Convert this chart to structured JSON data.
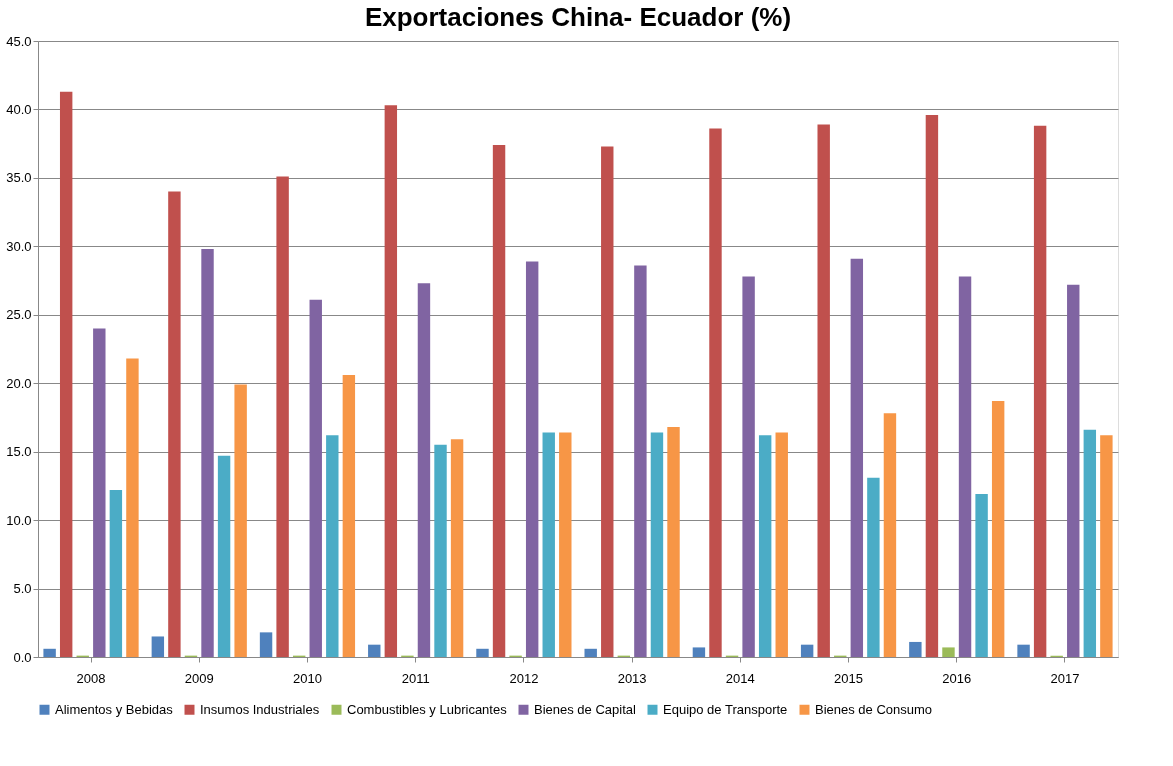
{
  "chart_data": {
    "type": "bar",
    "title": "Exportaciones China- Ecuador (%)",
    "categories": [
      "2008",
      "2009",
      "2010",
      "2011",
      "2012",
      "2013",
      "2014",
      "2015",
      "2016",
      "2017"
    ],
    "series": [
      {
        "name": "Alimentos y Bebidas",
        "color": "#4f81bd",
        "values": [
          0.6,
          1.5,
          1.8,
          0.9,
          0.6,
          0.6,
          0.7,
          0.9,
          1.1,
          0.9
        ]
      },
      {
        "name": "Insumos Industriales",
        "color": "#c0504d",
        "values": [
          41.3,
          34.0,
          35.1,
          40.3,
          37.4,
          37.3,
          38.6,
          38.9,
          39.6,
          38.8
        ]
      },
      {
        "name": "Combustibles y Lubricantes",
        "color": "#9bbb59",
        "values": [
          0.1,
          0.1,
          0.1,
          0.1,
          0.1,
          0.1,
          0.1,
          0.1,
          0.7,
          0.1
        ]
      },
      {
        "name": "Bienes de Capital",
        "color": "#8064a2",
        "values": [
          24.0,
          29.8,
          26.1,
          27.3,
          28.9,
          28.6,
          27.8,
          29.1,
          27.8,
          27.2
        ]
      },
      {
        "name": "Equipo de Transporte",
        "color": "#4bacc6",
        "values": [
          12.2,
          14.7,
          16.2,
          15.5,
          16.4,
          16.4,
          16.2,
          13.1,
          11.9,
          16.6
        ]
      },
      {
        "name": "Bienes de Consumo",
        "color": "#f79646",
        "values": [
          21.8,
          19.9,
          20.6,
          15.9,
          16.4,
          16.8,
          16.4,
          17.8,
          18.7,
          16.2
        ]
      }
    ],
    "ylim": [
      0,
      45
    ],
    "yticks": [
      {
        "value": 0,
        "label": "0.0"
      },
      {
        "value": 5,
        "label": "5.0"
      },
      {
        "value": 10,
        "label": "10.0"
      },
      {
        "value": 15,
        "label": "15.0"
      },
      {
        "value": 20,
        "label": "20.0"
      },
      {
        "value": 25,
        "label": "25.0"
      },
      {
        "value": 30,
        "label": "30.0"
      },
      {
        "value": 35,
        "label": "35.0"
      },
      {
        "value": 40,
        "label": "40.0"
      },
      {
        "value": 45,
        "label": "45.0"
      }
    ],
    "grid": "y",
    "legend": "bottom"
  }
}
